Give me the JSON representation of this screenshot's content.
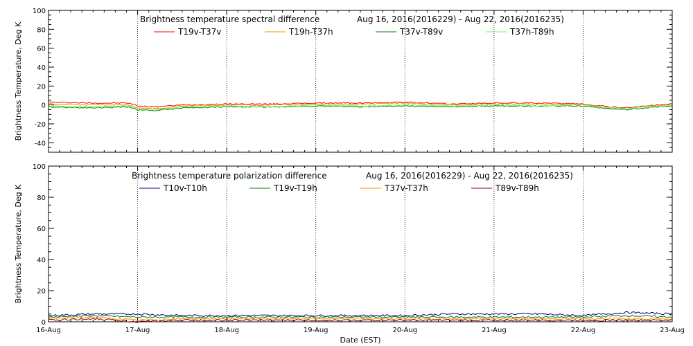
{
  "chart_data": [
    {
      "type": "line",
      "title": "Brightness temperature spectral difference",
      "date_range": "Aug 16, 2016(2016229) - Aug 22, 2016(2016235)",
      "ylabel": "Brightness Temperature, Deg K",
      "xlabel": "",
      "ylim": [
        -50,
        100
      ],
      "yticks": [
        -40,
        -20,
        0,
        20,
        40,
        60,
        80,
        100
      ],
      "xlim": [
        0,
        7
      ],
      "grid": "vertical dotted at each day",
      "legend_placement": "top",
      "x": [
        0,
        0.5,
        0.9,
        1.0,
        1.2,
        1.5,
        2.0,
        2.5,
        3.0,
        3.5,
        4.0,
        4.5,
        5.0,
        5.5,
        6.0,
        6.3,
        6.5,
        6.7,
        7.0
      ],
      "series": [
        {
          "name": "T19v-T37v",
          "color": "#ff0000",
          "values": [
            3,
            2,
            2,
            -1,
            -2,
            0,
            1,
            1,
            2,
            2,
            3,
            1,
            2,
            2,
            1,
            -2,
            -3,
            -1,
            1
          ]
        },
        {
          "name": "T19h-T37h",
          "color": "#ff8c00",
          "values": [
            1,
            0,
            0,
            -3,
            -4,
            -1,
            0,
            0,
            1,
            1,
            2,
            0,
            1,
            1,
            0,
            -3,
            -4,
            -1,
            0
          ]
        },
        {
          "name": "T37v-T89v",
          "color": "#008000",
          "values": [
            -2,
            -3,
            -2,
            -5,
            -6,
            -3,
            -2,
            -2,
            -1,
            -2,
            -1,
            -2,
            -1,
            -1,
            -1,
            -4,
            -5,
            -3,
            -1
          ]
        },
        {
          "name": "T37h-T89h",
          "color": "#66ff66",
          "values": [
            -1,
            -2,
            -1,
            -4,
            -5,
            -2,
            -1,
            -2,
            0,
            -1,
            0,
            -1,
            0,
            -1,
            0,
            -3,
            -4,
            -2,
            0
          ]
        }
      ]
    },
    {
      "type": "line",
      "title": "Brightness temperature polarization difference",
      "date_range": "Aug 16, 2016(2016229) - Aug 22, 2016(2016235)",
      "ylabel": "Brightness Temperature, Deg K",
      "xlabel": "Date (EST)",
      "ylim": [
        0,
        100
      ],
      "yticks": [
        0,
        20,
        40,
        60,
        80,
        100
      ],
      "xlim": [
        0,
        7
      ],
      "categories": [
        "16-Aug",
        "17-Aug",
        "18-Aug",
        "19-Aug",
        "20-Aug",
        "21-Aug",
        "22-Aug",
        "23-Aug"
      ],
      "grid": "vertical dotted at each day",
      "legend_placement": "top",
      "x": [
        0,
        0.5,
        1.0,
        1.5,
        2.0,
        2.5,
        3.0,
        3.5,
        4.0,
        4.5,
        5.0,
        5.5,
        6.0,
        6.5,
        7.0
      ],
      "series": [
        {
          "name": "T10v-T10h",
          "color": "#00008b",
          "values": [
            4,
            5,
            5,
            4,
            4,
            4,
            4,
            4,
            4,
            5,
            5,
            5,
            4,
            6,
            5
          ]
        },
        {
          "name": "T19v-T19h",
          "color": "#008000",
          "values": [
            3,
            4,
            3,
            3,
            3,
            3,
            3,
            3,
            3,
            3,
            3,
            3,
            3,
            4,
            3
          ]
        },
        {
          "name": "T37v-T37h",
          "color": "#ff8c00",
          "values": [
            2,
            3,
            1,
            2,
            2,
            2,
            2,
            2,
            2,
            2,
            2,
            2,
            2,
            2,
            2
          ]
        },
        {
          "name": "T89v-T89h",
          "color": "#8b0000",
          "values": [
            1,
            2,
            0,
            1,
            1,
            1,
            1,
            1,
            1,
            1,
            1,
            1,
            1,
            1,
            1
          ]
        }
      ]
    }
  ]
}
